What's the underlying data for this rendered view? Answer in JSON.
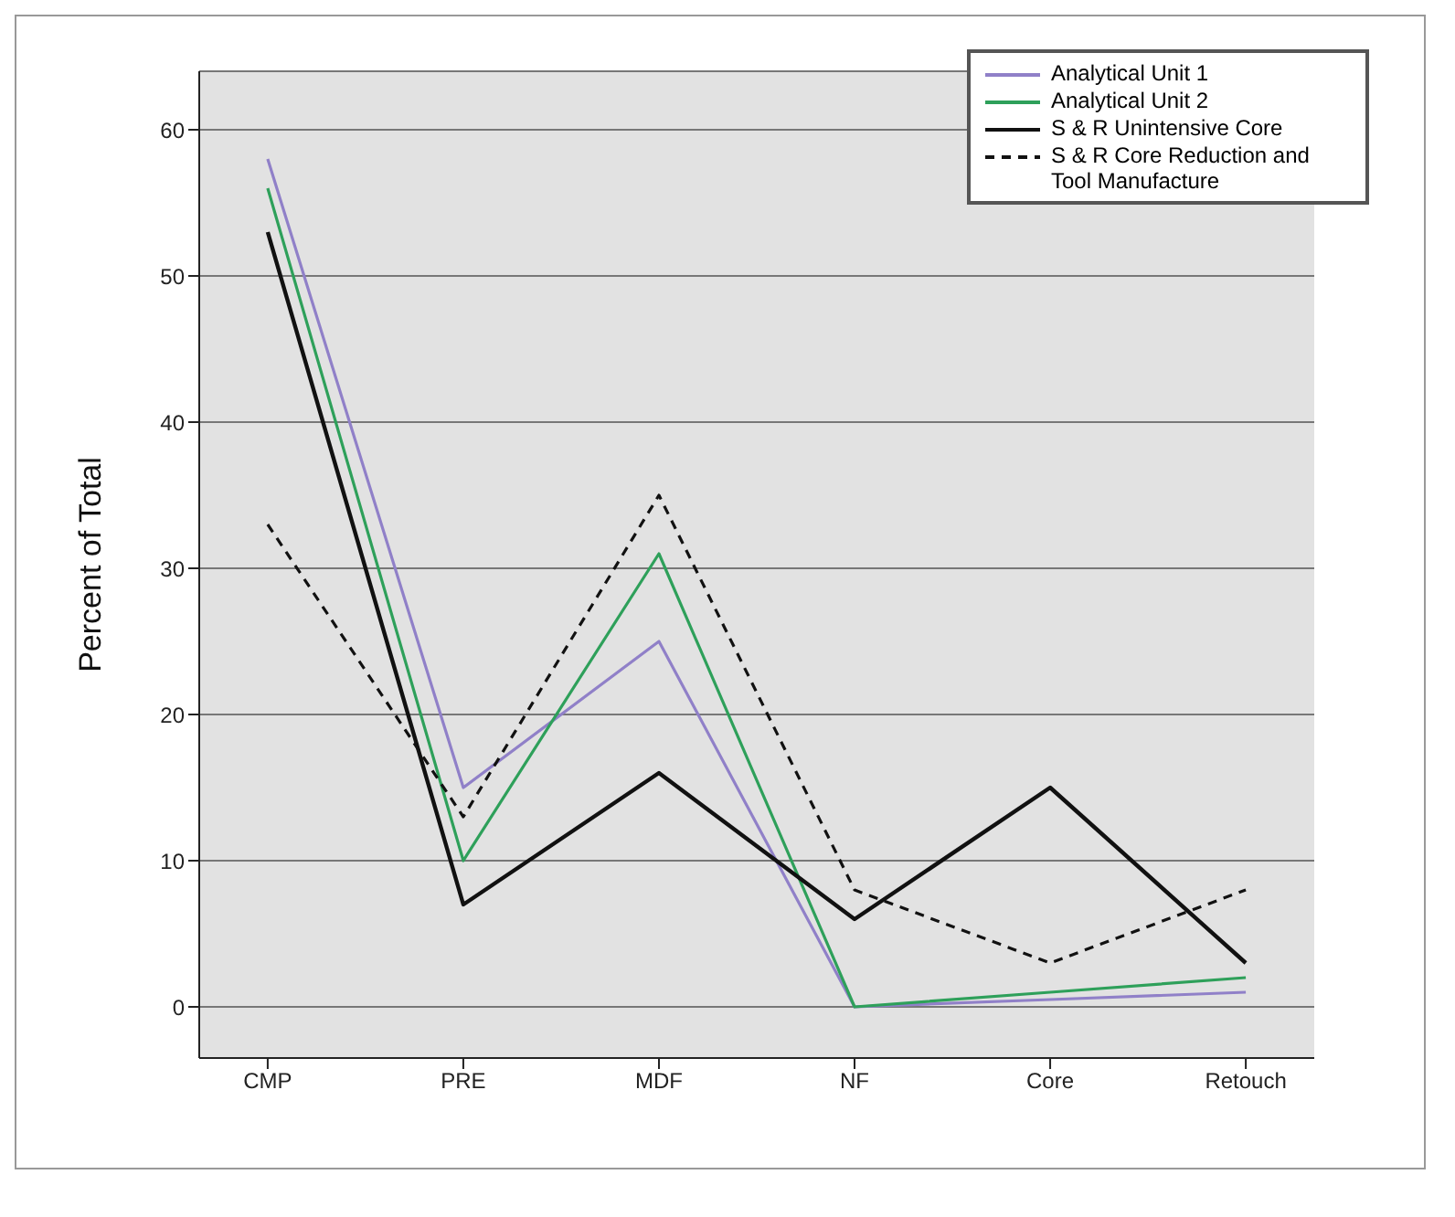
{
  "chart_data": {
    "type": "line",
    "ylabel": "Percent of Total",
    "categories": [
      "CMP",
      "PRE",
      "MDF",
      "NF",
      "Core",
      "Retouch"
    ],
    "series": [
      {
        "name": "Analytical Unit 1",
        "color": "#9080c8",
        "values": [
          58,
          15,
          25,
          0,
          0.5,
          1
        ]
      },
      {
        "name": "Analytical Unit 2",
        "color": "#2ea05a",
        "values": [
          56,
          10,
          31,
          0,
          1,
          2
        ]
      },
      {
        "name": "S & R Unintensive Core",
        "color": "#111111",
        "values": [
          53,
          7,
          16,
          6,
          15,
          3
        ]
      },
      {
        "name": "S & R Core Reduction and Tool Manufacture",
        "color": "#111111",
        "line_style": "dashed",
        "values": [
          33,
          13,
          35,
          8,
          3,
          8
        ]
      }
    ],
    "ylim": [
      -3.5,
      64
    ],
    "yticks": [
      0,
      10,
      20,
      30,
      40,
      50,
      60
    ],
    "grid": "y",
    "legend": "top right",
    "marker": "none",
    "line_style": "solid"
  }
}
